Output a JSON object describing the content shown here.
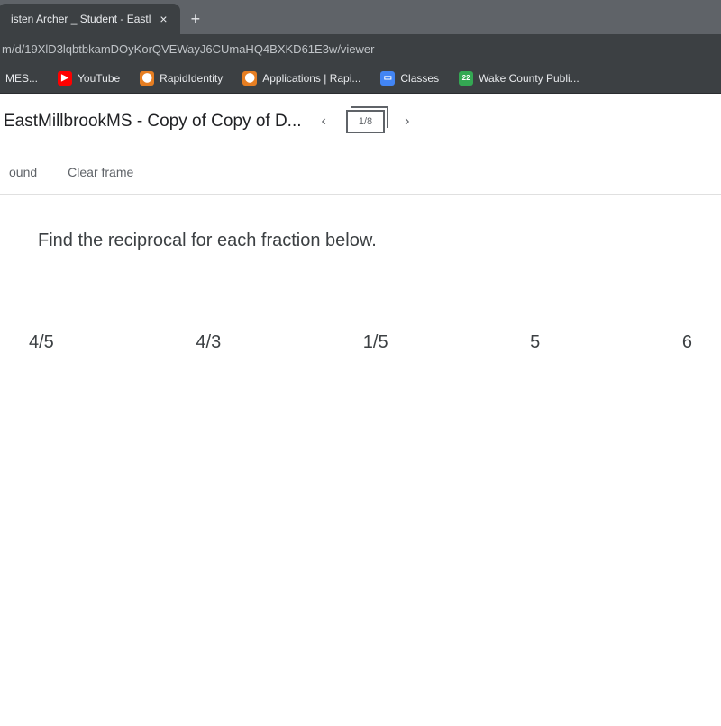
{
  "browser": {
    "tab_title": "isten Archer _ Student - Eastl",
    "url": "m/d/19XlD3lqbtbkamDOyKorQVEWayJ6CUmaHQ4BXKD61E3w/viewer"
  },
  "bookmarks": {
    "item0": "MES...",
    "item1": "YouTube",
    "item2": "RapidIdentity",
    "item3": "Applications | Rapi...",
    "item4": "Classes",
    "item5": "Wake County Publi..."
  },
  "doc": {
    "title": "EastMillbrookMS - Copy of Copy of D...",
    "slide_position": "1/8"
  },
  "toolbar": {
    "btn0": "ound",
    "btn1": "Clear frame"
  },
  "content": {
    "question": "Find the reciprocal for each fraction below.",
    "fractions": {
      "f0": "4/5",
      "f1": "4/3",
      "f2": "1/5",
      "f3": "5",
      "f4": "6"
    }
  }
}
